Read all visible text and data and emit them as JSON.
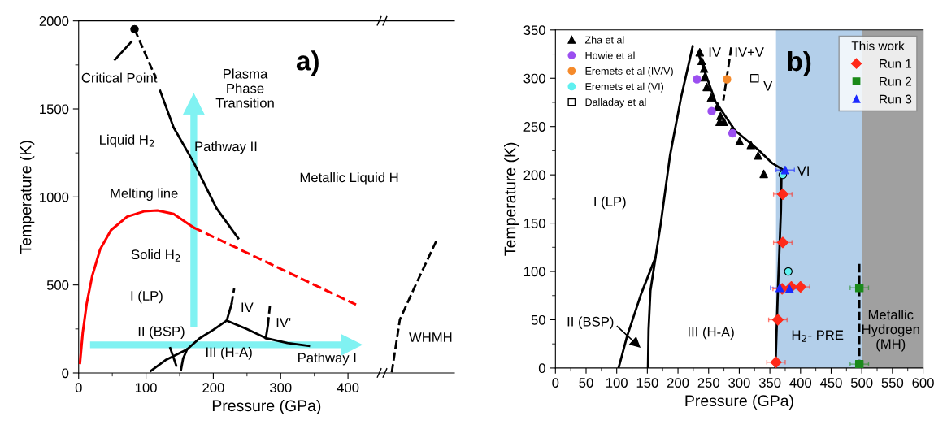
{
  "chart_data": [
    {
      "type": "line",
      "title": "a)",
      "xlabel": "Pressure (GPa)",
      "ylabel": "Temperature (K)",
      "xlim": [
        0,
        558
      ],
      "ylim": [
        0,
        2000
      ],
      "xticks": [
        0,
        {
          "value": 50,
          "label": null
        },
        100,
        {
          "value": 150,
          "label": null
        },
        200,
        {
          "value": 250,
          "label": null
        },
        300,
        {
          "value": 350,
          "label": null
        },
        400
      ],
      "yticks": [
        0,
        {
          "value": 250,
          "label": null
        },
        500,
        {
          "value": 750,
          "label": null
        },
        1000,
        {
          "value": 1250,
          "label": null
        },
        1500,
        {
          "value": 1750,
          "label": null
        },
        2000
      ],
      "series": [
        {
          "type": "scatter",
          "marker": "circle",
          "color": "#000000",
          "x": [
            83
          ],
          "values": [
            1953
          ]
        },
        {
          "type": "line",
          "color": "#000000",
          "x": [
            54,
            78
          ],
          "values": [
            1780,
            1880
          ]
        },
        {
          "type": "line",
          "line_style": "dashed",
          "color": "#000000",
          "x": [
            83,
            115
          ],
          "values": [
            1953,
            1672
          ]
        },
        {
          "type": "line",
          "color": "#000000",
          "x": [
            121,
            141,
            171,
            205,
            237
          ],
          "values": [
            1603,
            1395,
            1195,
            934,
            765
          ]
        },
        {
          "type": "line",
          "color": "#ff0000",
          "x": [
            2,
            6,
            12,
            20,
            32,
            48,
            72,
            97,
            117,
            141,
            165,
            171
          ],
          "values": [
            57,
            226,
            395,
            549,
            703,
            811,
            888,
            918,
            923,
            903,
            841,
            826
          ]
        },
        {
          "type": "line",
          "line_style": "dashed",
          "color": "#ff0000",
          "x": [
            171,
            412
          ],
          "values": [
            826,
            388
          ]
        },
        {
          "type": "line",
          "color": "#000000",
          "x": [
            107,
            130,
            161,
            179,
            200,
            220
          ],
          "values": [
            11,
            75,
            134,
            195,
            245,
            298
          ]
        },
        {
          "type": "line",
          "color": "#000000",
          "x": [
            152,
            155,
            161
          ],
          "values": [
            18,
            80,
            134
          ]
        },
        {
          "type": "line",
          "color": "#000000",
          "x": [
            136,
            145
          ],
          "values": [
            141,
            41
          ]
        },
        {
          "type": "line",
          "color": "#000000",
          "x": [
            220,
            250,
            278,
            310,
            342
          ],
          "values": [
            298,
            249,
            198,
            170,
            154
          ]
        },
        {
          "type": "line",
          "color": "#000000",
          "x": [
            220,
            227
          ],
          "values": [
            298,
            390
          ]
        },
        {
          "type": "line",
          "line_style": "dashed",
          "color": "#000000",
          "x": [
            227,
            231
          ],
          "values": [
            390,
            480
          ]
        },
        {
          "type": "line",
          "color": "#000000",
          "x": [
            278,
            281
          ],
          "values": [
            198,
            270
          ]
        },
        {
          "type": "line",
          "line_style": "dashed",
          "color": "#000000",
          "x": [
            281,
            284
          ],
          "values": [
            270,
            380
          ]
        },
        {
          "type": "line",
          "line_style": "dashed",
          "color": "#000000",
          "x": [
            465,
            477,
            499,
            532
          ],
          "values": [
            3,
            303,
            488,
            757
          ]
        },
        {
          "type": "line",
          "marker": "triangle",
          "color": "#80f2f2",
          "x": [
            171,
            171
          ],
          "values": [
            280,
            1526
          ]
        },
        {
          "type": "line",
          "marker": "triangle",
          "color": "#80f2f2",
          "x": [
            22,
            405
          ],
          "values": [
            160,
            160
          ]
        }
      ],
      "annotations": [
        "Critical Point",
        "Plasma\nPhase\nTransition",
        "Liquid H$_{2}$",
        "Pathway II",
        "Metallic Liquid H",
        "Melting line",
        "Solid H$_{2}$",
        "I (LP)",
        "IV",
        "IV'",
        "II (BSP)",
        "III (H-A)",
        "Pathway I",
        "WHMH"
      ]
    },
    {
      "type": "scatter",
      "title": "b)",
      "xlabel": "Pressure (GPa)",
      "ylabel": "Temperature (K)",
      "xlim": [
        0,
        600
      ],
      "ylim": [
        0,
        350
      ],
      "xticks": [
        0,
        {
          "value": 25,
          "label": null
        },
        50,
        {
          "value": 75,
          "label": null
        },
        100,
        {
          "value": 125,
          "label": null
        },
        150,
        {
          "value": 175,
          "label": null
        },
        200,
        {
          "value": 225,
          "label": null
        },
        250,
        {
          "value": 275,
          "label": null
        },
        300,
        {
          "value": 325,
          "label": null
        },
        350,
        {
          "value": 375,
          "label": null
        },
        400,
        {
          "value": 425,
          "label": null
        },
        450,
        {
          "value": 475,
          "label": null
        },
        500,
        {
          "value": 525,
          "label": null
        },
        550,
        {
          "value": 575,
          "label": null
        },
        600
      ],
      "yticks": [
        0,
        {
          "value": 25,
          "label": null
        },
        50,
        {
          "value": 75,
          "label": null
        },
        100,
        {
          "value": 125,
          "label": null
        },
        150,
        {
          "value": 175,
          "label": null
        },
        200,
        {
          "value": 225,
          "label": null
        },
        250,
        {
          "value": 275,
          "label": null
        },
        300,
        {
          "value": 325,
          "label": null
        },
        350
      ],
      "legend": "top left",
      "legend_title": "This work",
      "bands": [
        {
          "axis": "x",
          "from": 360,
          "to": 500,
          "color": "#b3cfea"
        },
        {
          "axis": "x",
          "from": 500,
          "to": 600,
          "color": "#a0a0a0"
        }
      ],
      "series": [
        {
          "type": "line",
          "color": "#000000",
          "x": [
            151,
            152,
            155,
            163,
            172,
            187,
            205,
            224
          ],
          "values": [
            0,
            40,
            80,
            113,
            150,
            220,
            280,
            333
          ]
        },
        {
          "type": "line",
          "color": "#000000",
          "x": [
            103,
            117,
            140,
            163
          ],
          "values": [
            0,
            33,
            77,
            114
          ]
        },
        {
          "type": "line",
          "color": "#000000",
          "x": [
            233,
            261,
            293,
            331,
            354,
            372
          ],
          "values": [
            326,
            276,
            246,
            226,
            212,
            205
          ]
        },
        {
          "type": "line",
          "color": "#000000",
          "x": [
            359,
            363,
            368,
            369
          ],
          "values": [
            0,
            80,
            163,
            204
          ]
        },
        {
          "type": "line",
          "line_style": "dashed",
          "color": "#000000",
          "x": [
            287,
            274
          ],
          "values": [
            332,
            277
          ]
        },
        {
          "type": "line",
          "line_style": "dashed",
          "color": "#000000",
          "x": [
            496,
            496
          ],
          "values": [
            0,
            108
          ]
        },
        {
          "type": "line",
          "marker": "triangle",
          "color": "#000000",
          "x": [
            101,
            132
          ],
          "values": [
            43,
            25
          ]
        },
        {
          "name": "Zha et al",
          "marker": "triangle",
          "color": "#000000",
          "x": [
            235.5,
            238.7,
            242.5,
            243.4,
            247,
            254,
            264.7,
            269.4,
            268,
            275,
            289,
            300.5,
            319,
            330.7,
            340
          ],
          "values": [
            327,
            318,
            310,
            301,
            291,
            280,
            271,
            261,
            255,
            255,
            247,
            235,
            231,
            220,
            201
          ]
        },
        {
          "name": "Howie et al",
          "marker": "circle",
          "color": "#9b4ff0",
          "x": [
            231,
            255,
            289
          ],
          "values": [
            299,
            266,
            243
          ]
        },
        {
          "name": "Eremets et al (IV/V)",
          "marker": "circle",
          "color": "#f58a2a",
          "x": [
            280
          ],
          "values": [
            299
          ]
        },
        {
          "name": "Eremets et al (VI)",
          "marker": "circle",
          "color": "#5ff0f0",
          "x": [
            371,
            380
          ],
          "values": [
            200,
            100
          ]
        },
        {
          "name": "Dalladay et al",
          "marker": "square",
          "color": "#ffffff",
          "x": [
            325
          ],
          "values": [
            300
          ]
        },
        {
          "name": "Run 1",
          "marker": "diamond",
          "color": "#ff2a1a",
          "x": [
            371,
            371,
            370,
            385,
            400,
            363,
            360
          ],
          "values": [
            180,
            130,
            82,
            84,
            84,
            50,
            6
          ],
          "xerrors": [
            15,
            15,
            15,
            15,
            15,
            15,
            15
          ]
        },
        {
          "name": "Run 2",
          "marker": "square",
          "color": "#1a8a1a",
          "x": [
            496,
            496
          ],
          "values": [
            83,
            4
          ],
          "xerrors": [
            15,
            15
          ]
        },
        {
          "name": "Run 3",
          "marker": "triangle",
          "color": "#1a2aff",
          "x": [
            375,
            366,
            382
          ],
          "values": [
            205,
            83,
            82
          ],
          "xerrors": [
            15,
            15,
            15
          ]
        }
      ],
      "annotations": [
        "IV",
        "IV+V",
        "V",
        "VI",
        "I (LP)",
        "II (BSP)",
        "III (H-A)",
        "H$_{2}$- PRE",
        "Metallic\nHydrogen\n(MH)"
      ]
    }
  ]
}
